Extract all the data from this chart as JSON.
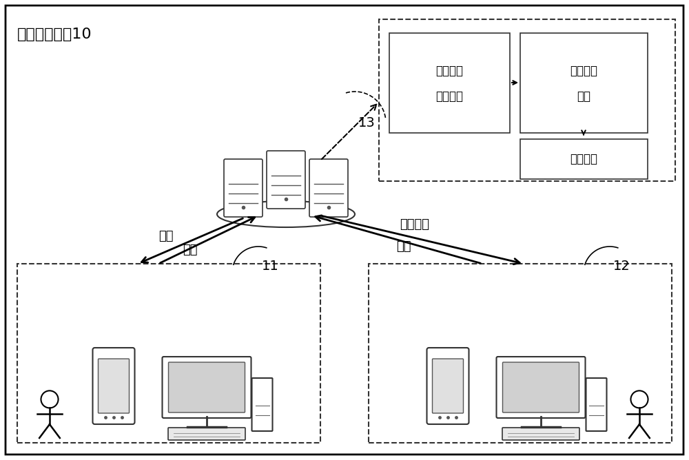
{
  "title": "问答处理系统10",
  "bg_color": "#ffffff",
  "border_color": "#000000",
  "label_13": "13",
  "label_11": "11",
  "label_12": "12",
  "box1_lines": [
    "至少一轮",
    "咨询对话"
  ],
  "box2_lines": [
    "问答信息",
    "识别"
  ],
  "box3_lines": [
    "对象信息"
  ],
  "arrow_label_tiwenn": "提问",
  "arrow_label_fuhe1": "答复",
  "arrow_label_duixiang": "对象信息",
  "arrow_label_fuhe2": "答复",
  "font_size_title": 16,
  "font_size_label": 14,
  "font_size_box": 14
}
